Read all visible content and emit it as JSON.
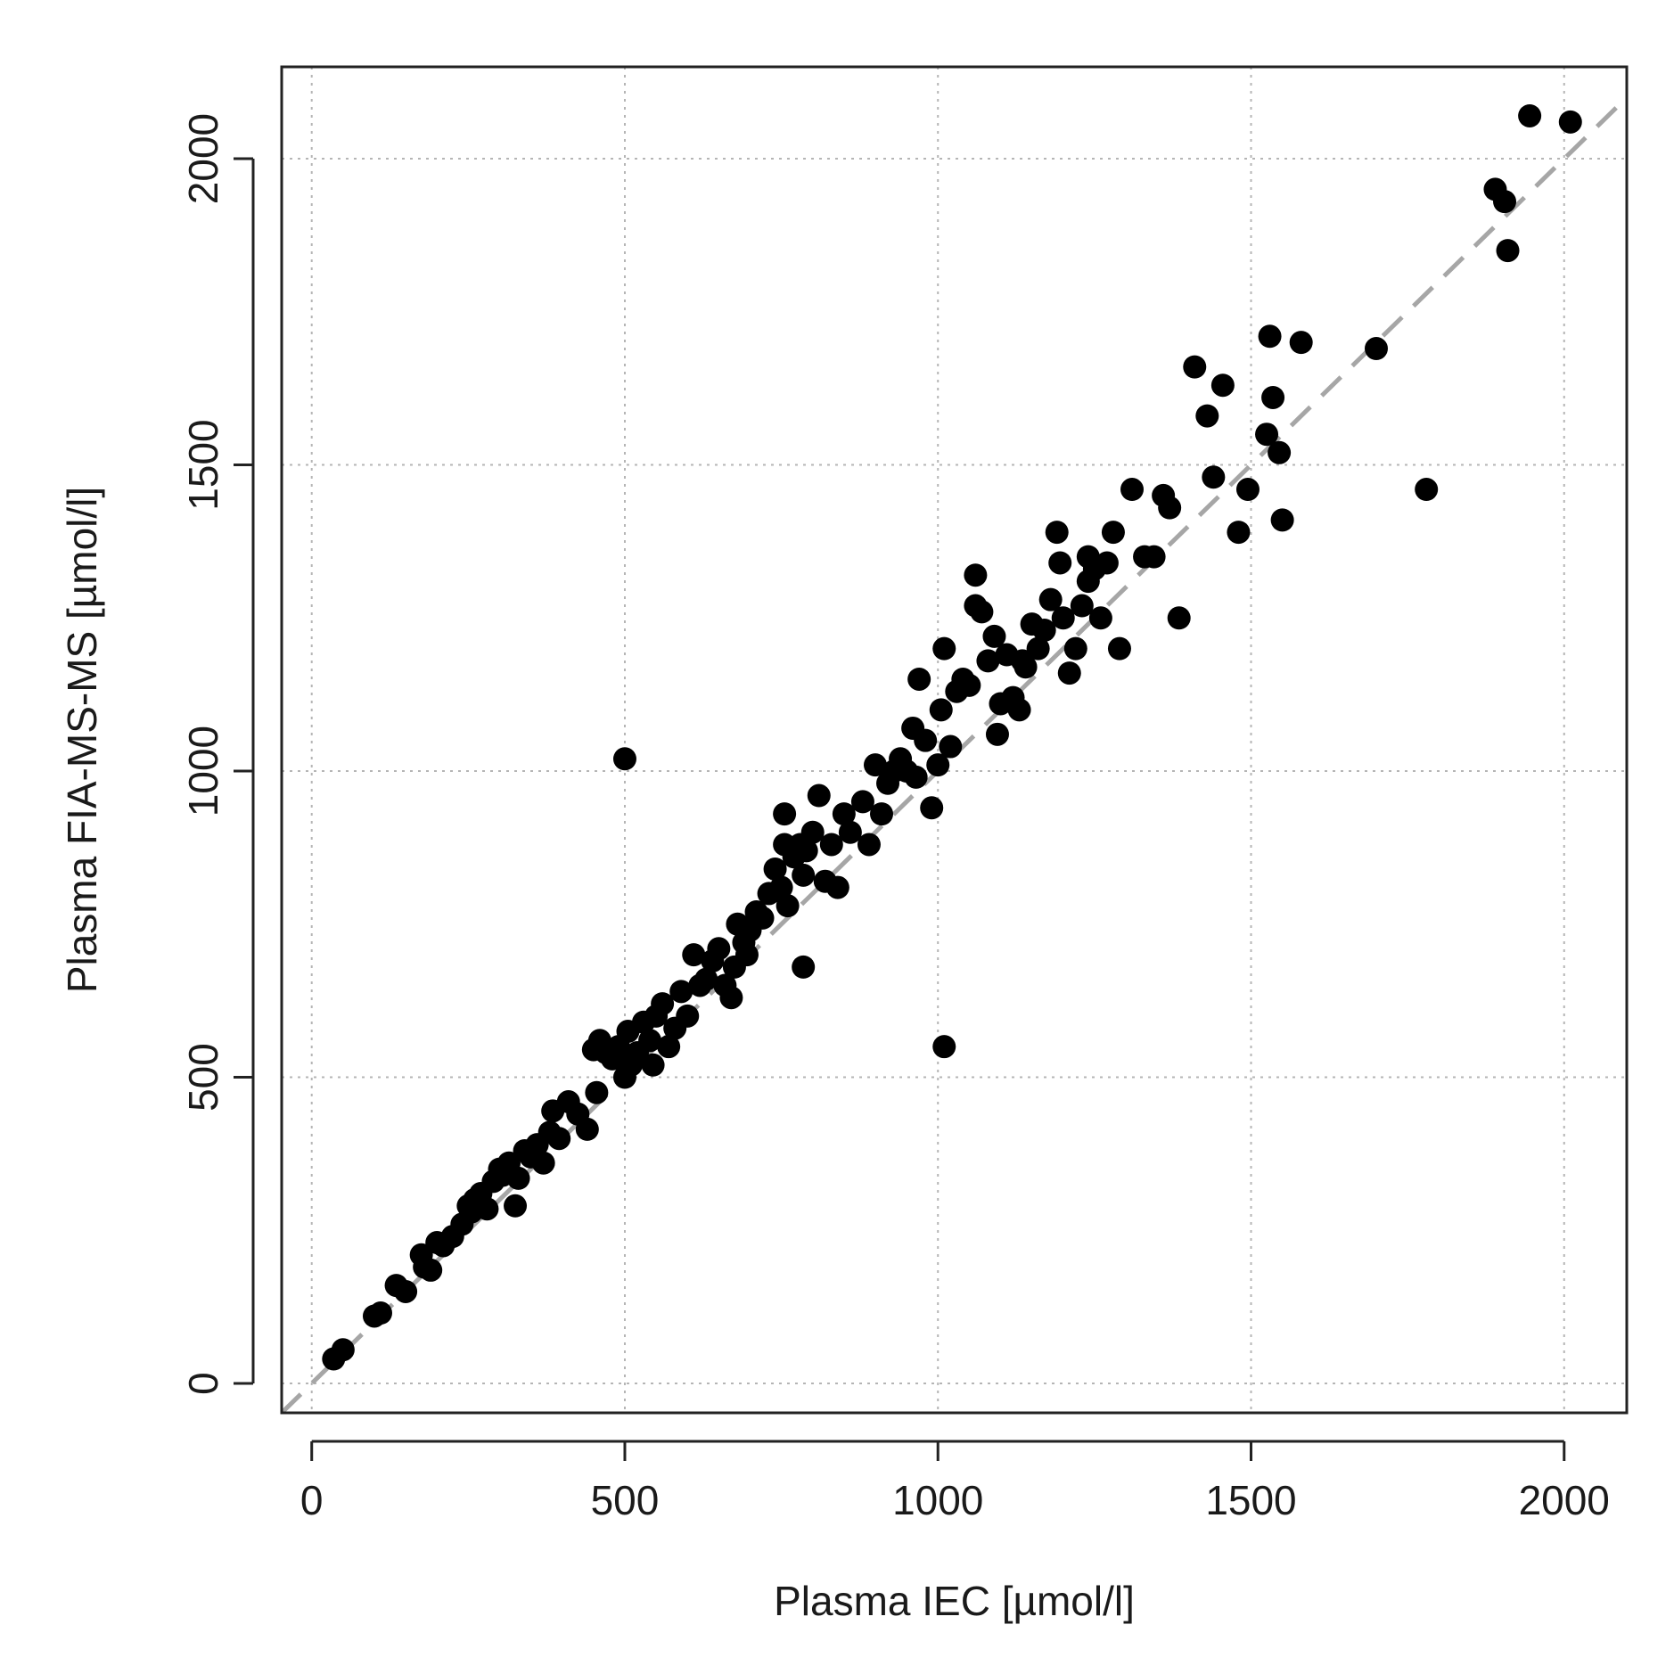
{
  "chart_data": {
    "type": "scatter",
    "title": "",
    "xlabel": "Plasma IEC [µmol/l]",
    "ylabel": "Plasma FIA-MS-MS [µmol/l]",
    "xlim": [
      -48,
      2100
    ],
    "ylim": [
      -48,
      2150
    ],
    "xticks": [
      0,
      500,
      1000,
      1500,
      2000
    ],
    "yticks": [
      0,
      500,
      1000,
      1500,
      2000
    ],
    "xtick_labels": [
      "0",
      "500",
      "1000",
      "1500",
      "2000"
    ],
    "ytick_labels": [
      "0",
      "500",
      "1000",
      "1500",
      "2000"
    ],
    "grid": true,
    "legend": "none",
    "colors": {
      "points": "#000000",
      "identity_line": "#a6a6a6",
      "grid": "#b5b5b5",
      "frame": "#222222"
    },
    "reference_line": {
      "slope": 1,
      "intercept": 0,
      "style": "dashed"
    },
    "series": [
      {
        "x": [
          35,
          50,
          100,
          110,
          135,
          150,
          175,
          180,
          190,
          200,
          210,
          225,
          240,
          250,
          255,
          260,
          270,
          280,
          290,
          300,
          305,
          315,
          325,
          330,
          340,
          350,
          360,
          370,
          380,
          385,
          395,
          410,
          425,
          440,
          450,
          455,
          460,
          470,
          480,
          490,
          500,
          505,
          510,
          520,
          530,
          540,
          545,
          550,
          560,
          570,
          580,
          590,
          600,
          610,
          620,
          630,
          640,
          650,
          660,
          670,
          675,
          680,
          690,
          700,
          710,
          720,
          730,
          740,
          750,
          755,
          760,
          770,
          780,
          785,
          790,
          800,
          810,
          820,
          830,
          840,
          850,
          860,
          880,
          890,
          900,
          910,
          920,
          930,
          940,
          950,
          960,
          965,
          970,
          980,
          990,
          1000,
          1005,
          1010,
          1020,
          1030,
          1040,
          1050,
          1060,
          1070,
          1080,
          1090,
          1095,
          1100,
          1110,
          1120,
          1130,
          1140,
          1150,
          1160,
          1170,
          1180,
          1190,
          1195,
          1200,
          1210,
          1220,
          1230,
          1240,
          1250,
          1260,
          1270,
          1280,
          1290,
          1310,
          1330,
          1345,
          1360,
          1370,
          1385,
          1410,
          1430,
          1440,
          1455,
          1480,
          1495,
          1525,
          1530,
          1535,
          1545,
          1550,
          1580,
          1700,
          1780,
          1890,
          1905,
          1910,
          1945,
          2010,
          500,
          1010,
          785,
          695,
          1060,
          1135,
          1240,
          755
        ],
        "y": [
          40,
          55,
          110,
          115,
          160,
          150,
          210,
          190,
          185,
          230,
          225,
          240,
          260,
          290,
          280,
          300,
          310,
          285,
          330,
          350,
          340,
          360,
          290,
          335,
          380,
          370,
          390,
          360,
          410,
          445,
          400,
          460,
          440,
          415,
          545,
          475,
          560,
          540,
          530,
          550,
          500,
          575,
          520,
          540,
          590,
          560,
          520,
          600,
          620,
          550,
          580,
          640,
          600,
          700,
          650,
          660,
          690,
          710,
          650,
          630,
          680,
          750,
          720,
          740,
          770,
          760,
          800,
          840,
          810,
          930,
          780,
          860,
          880,
          830,
          870,
          900,
          960,
          820,
          880,
          810,
          930,
          900,
          950,
          880,
          1010,
          930,
          980,
          1000,
          1020,
          1000,
          1070,
          990,
          1150,
          1050,
          940,
          1010,
          1100,
          1200,
          1040,
          1130,
          1150,
          1140,
          1320,
          1260,
          1180,
          1220,
          1060,
          1110,
          1190,
          1120,
          1100,
          1170,
          1240,
          1200,
          1230,
          1280,
          1390,
          1340,
          1250,
          1160,
          1200,
          1270,
          1310,
          1330,
          1250,
          1340,
          1390,
          1200,
          1460,
          1350,
          1350,
          1450,
          1430,
          1250,
          1660,
          1580,
          1480,
          1630,
          1390,
          1460,
          1550,
          1710,
          1610,
          1520,
          1410,
          1700,
          1690,
          1460,
          1950,
          1930,
          1850,
          2070,
          2060,
          1020,
          550,
          680,
          700,
          1270,
          1180,
          1350,
          880
        ]
      }
    ]
  }
}
